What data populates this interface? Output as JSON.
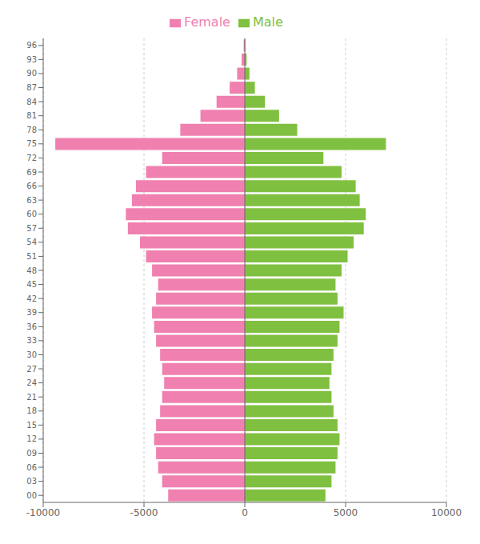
{
  "chart_data": {
    "type": "bar",
    "orientation": "horizontal",
    "categories": [
      "00",
      "03",
      "06",
      "09",
      "12",
      "15",
      "18",
      "21",
      "24",
      "27",
      "30",
      "33",
      "36",
      "39",
      "42",
      "45",
      "48",
      "51",
      "54",
      "57",
      "60",
      "63",
      "66",
      "69",
      "72",
      "75",
      "78",
      "81",
      "84",
      "87",
      "90",
      "93",
      "96"
    ],
    "series": [
      {
        "name": "Female",
        "color": "#f080b0",
        "values": [
          -3800,
          -4100,
          -4300,
          -4400,
          -4500,
          -4400,
          -4200,
          -4100,
          -4000,
          -4100,
          -4200,
          -4400,
          -4500,
          -4600,
          -4400,
          -4300,
          -4600,
          -4900,
          -5200,
          -5800,
          -5900,
          -5600,
          -5400,
          -4900,
          -4100,
          -9400,
          -3200,
          -2200,
          -1400,
          -750,
          -380,
          -160,
          -55
        ]
      },
      {
        "name": "Male",
        "color": "#80c040",
        "values": [
          4000,
          4300,
          4500,
          4600,
          4700,
          4600,
          4400,
          4300,
          4200,
          4300,
          4400,
          4600,
          4700,
          4900,
          4600,
          4500,
          4800,
          5100,
          5400,
          5900,
          6000,
          5700,
          5500,
          4800,
          3900,
          7000,
          2600,
          1700,
          1000,
          500,
          230,
          90,
          25
        ]
      }
    ],
    "xlim": [
      -10000,
      10000
    ],
    "xticks": [
      -10000,
      -5000,
      0,
      5000,
      10000
    ],
    "grid": true,
    "legend": "top"
  }
}
